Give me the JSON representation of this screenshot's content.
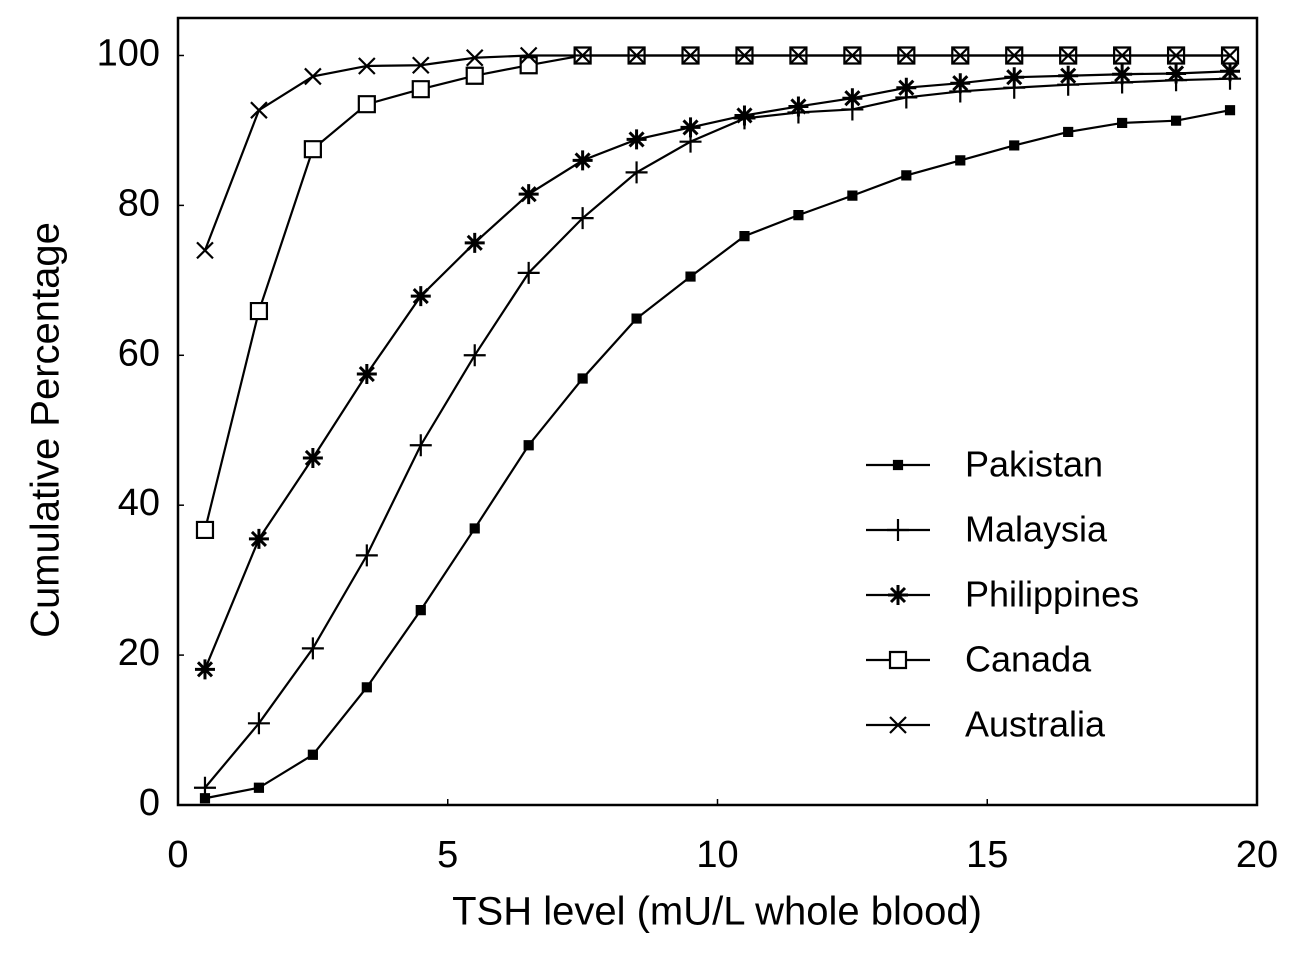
{
  "chart_data": {
    "type": "line",
    "x_label": "TSH level (mU/L whole blood)",
    "y_label": "Cumulative Percentage",
    "x": [
      0.5,
      1.5,
      2.5,
      3.5,
      4.5,
      5.5,
      6.5,
      7.5,
      8.5,
      9.5,
      10.5,
      11.5,
      12.5,
      13.5,
      14.5,
      15.5,
      16.5,
      17.5,
      18.5,
      19.5
    ],
    "series": [
      {
        "name": "Pakistan",
        "color": "#000000",
        "marker": "filled-square",
        "values": [
          0.9,
          2.3,
          6.7,
          15.7,
          26,
          36.9,
          48,
          56.9,
          64.9,
          70.5,
          75.9,
          78.7,
          81.3,
          84,
          86,
          88,
          89.8,
          91,
          91.3,
          92.7
        ]
      },
      {
        "name": "Malaysia",
        "color": "#000000",
        "marker": "plus",
        "values": [
          2.3,
          10.9,
          20.9,
          33.3,
          48,
          60,
          71,
          78.3,
          84.4,
          88.5,
          91.6,
          92.4,
          92.8,
          94.4,
          95.2,
          95.7,
          96.1,
          96.4,
          96.7,
          96.9
        ]
      },
      {
        "name": "Philippines",
        "color": "#000000",
        "marker": "asterisk",
        "values": [
          18.1,
          35.5,
          46.3,
          57.5,
          67.9,
          75,
          81.5,
          86,
          88.8,
          90.4,
          92,
          93.2,
          94.3,
          95.7,
          96.3,
          97.1,
          97.3,
          97.5,
          97.6,
          97.9
        ]
      },
      {
        "name": "Canada",
        "color": "#000000",
        "marker": "open-square",
        "values": [
          36.7,
          65.9,
          87.5,
          93.5,
          95.5,
          97.3,
          98.7,
          100,
          100,
          100,
          100,
          100,
          100,
          100,
          100,
          100,
          100,
          100,
          100,
          100
        ]
      },
      {
        "name": "Australia",
        "color": "#000000",
        "marker": "cross",
        "values": [
          74,
          92.7,
          97.2,
          98.6,
          98.7,
          99.7,
          100,
          100,
          100,
          100,
          100,
          100,
          100,
          100,
          100,
          100,
          100,
          100,
          100,
          100
        ]
      }
    ],
    "xlim": [
      0,
      20
    ],
    "xticks": [
      0,
      5,
      10,
      15,
      20
    ],
    "ylim": [
      0,
      105
    ],
    "yticks": [
      0,
      20,
      40,
      60,
      80,
      100
    ],
    "legend": "lower-right"
  }
}
